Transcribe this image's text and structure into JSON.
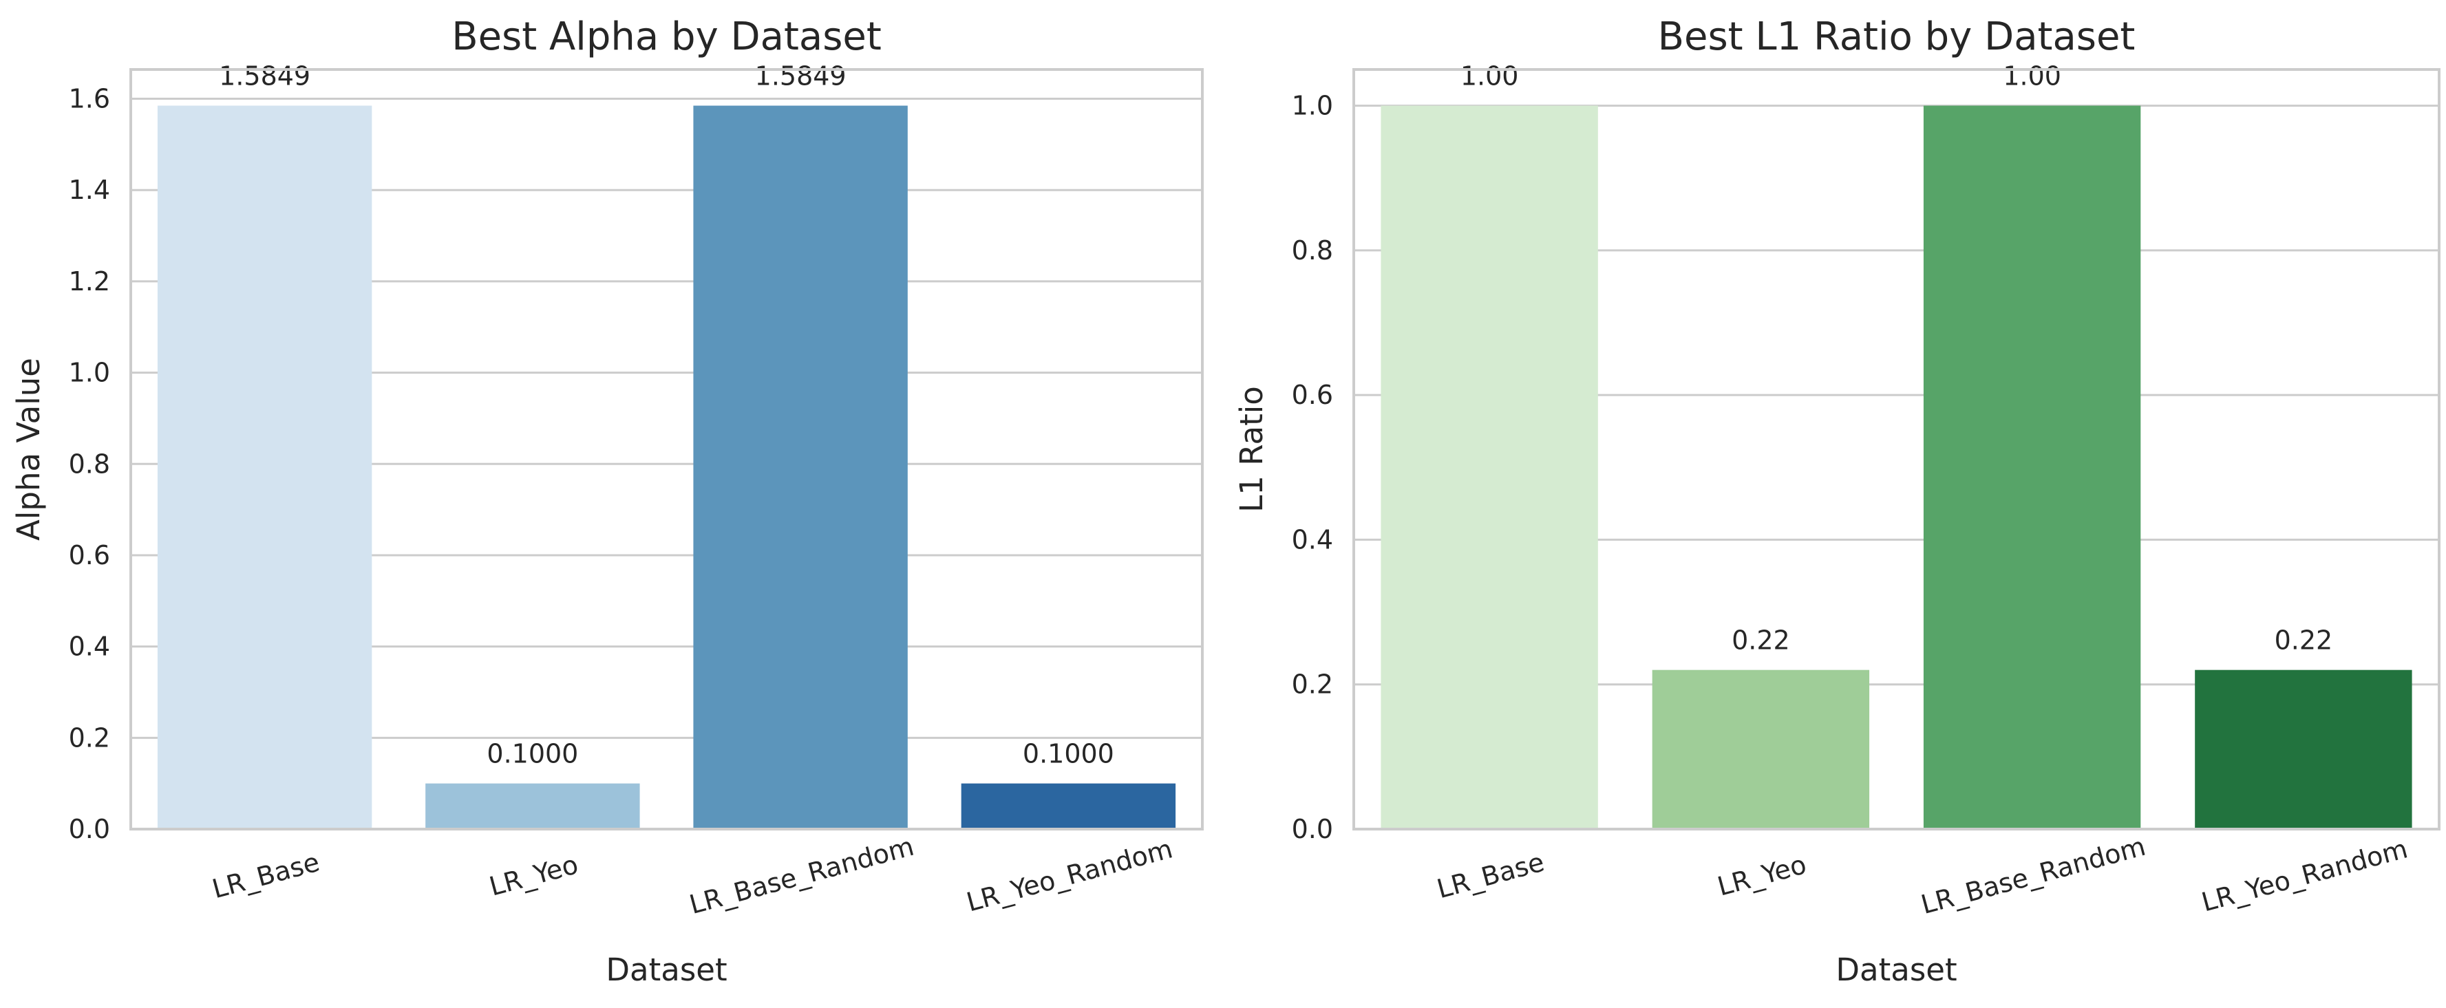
{
  "chart_data": [
    {
      "type": "bar",
      "title": "Best Alpha by Dataset",
      "xlabel": "Dataset",
      "ylabel": "Alpha Value",
      "categories": [
        "LR_Base",
        "LR_Yeo",
        "LR_Base_Random",
        "LR_Yeo_Random"
      ],
      "values": [
        1.5849,
        0.1,
        1.5849,
        0.1
      ],
      "value_labels": [
        "1.5849",
        "0.1000",
        "1.5849",
        "0.1000"
      ],
      "colors": [
        "#d3e3f0",
        "#9cc2da",
        "#5c95bb",
        "#2b66a0"
      ],
      "ylim": [
        0,
        1.6641
      ],
      "yticks": [
        0.0,
        0.2,
        0.4,
        0.6,
        0.8,
        1.0,
        1.2,
        1.4,
        1.6
      ],
      "ytick_labels": [
        "0.0",
        "0.2",
        "0.4",
        "0.6",
        "0.8",
        "1.0",
        "1.2",
        "1.4",
        "1.6"
      ],
      "grid": true,
      "palette": "Blues"
    },
    {
      "type": "bar",
      "title": "Best L1 Ratio by Dataset",
      "xlabel": "Dataset",
      "ylabel": "L1 Ratio",
      "categories": [
        "LR_Base",
        "LR_Yeo",
        "LR_Base_Random",
        "LR_Yeo_Random"
      ],
      "values": [
        1.0,
        0.22,
        1.0,
        0.22
      ],
      "value_labels": [
        "1.00",
        "0.22",
        "1.00",
        "0.22"
      ],
      "colors": [
        "#d5ebd1",
        "#9fcd98",
        "#57a468",
        "#22733e"
      ],
      "ylim": [
        0,
        1.05
      ],
      "yticks": [
        0.0,
        0.2,
        0.4,
        0.6,
        0.8,
        1.0
      ],
      "ytick_labels": [
        "0.0",
        "0.2",
        "0.4",
        "0.6",
        "0.8",
        "1.0"
      ],
      "grid": true,
      "palette": "Greens"
    }
  ]
}
